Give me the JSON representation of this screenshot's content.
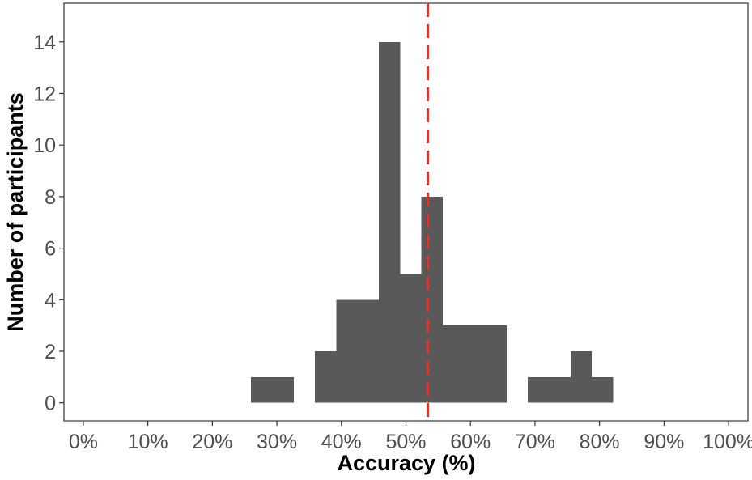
{
  "chart_data": {
    "type": "bar",
    "subtype": "histogram",
    "xlabel": "Accuracy (%)",
    "ylabel": "Number of participants",
    "xlim": [
      -3,
      103
    ],
    "ylim": [
      -0.7,
      15.5
    ],
    "x_ticks": [
      0,
      10,
      20,
      30,
      40,
      50,
      60,
      70,
      80,
      90,
      100
    ],
    "x_tick_labels": [
      "0%",
      "10%",
      "20%",
      "30%",
      "40%",
      "50%",
      "60%",
      "70%",
      "80%",
      "90%",
      "100%"
    ],
    "y_ticks": [
      0,
      2,
      4,
      6,
      8,
      10,
      12,
      14
    ],
    "y_tick_labels": [
      "0",
      "2",
      "4",
      "6",
      "8",
      "10",
      "12",
      "14"
    ],
    "bins": [
      {
        "start": 26.0,
        "end": 29.3,
        "count": 1
      },
      {
        "start": 29.3,
        "end": 32.6,
        "count": 1
      },
      {
        "start": 32.6,
        "end": 35.9,
        "count": 0
      },
      {
        "start": 35.9,
        "end": 39.2,
        "count": 2
      },
      {
        "start": 39.2,
        "end": 42.5,
        "count": 4
      },
      {
        "start": 42.5,
        "end": 45.8,
        "count": 4
      },
      {
        "start": 45.8,
        "end": 49.1,
        "count": 14
      },
      {
        "start": 49.1,
        "end": 52.4,
        "count": 5
      },
      {
        "start": 52.4,
        "end": 55.7,
        "count": 8
      },
      {
        "start": 55.7,
        "end": 59.0,
        "count": 3
      },
      {
        "start": 59.0,
        "end": 62.3,
        "count": 3
      },
      {
        "start": 62.3,
        "end": 65.6,
        "count": 3
      },
      {
        "start": 65.6,
        "end": 68.9,
        "count": 0
      },
      {
        "start": 68.9,
        "end": 72.2,
        "count": 1
      },
      {
        "start": 72.2,
        "end": 75.5,
        "count": 1
      },
      {
        "start": 75.5,
        "end": 78.8,
        "count": 2
      },
      {
        "start": 78.8,
        "end": 82.1,
        "count": 1
      }
    ],
    "reference_line": {
      "x": 53.4,
      "style": "dashed",
      "color": "#e0352b"
    },
    "bar_color": "#595959",
    "grid": false,
    "legend": "none"
  }
}
